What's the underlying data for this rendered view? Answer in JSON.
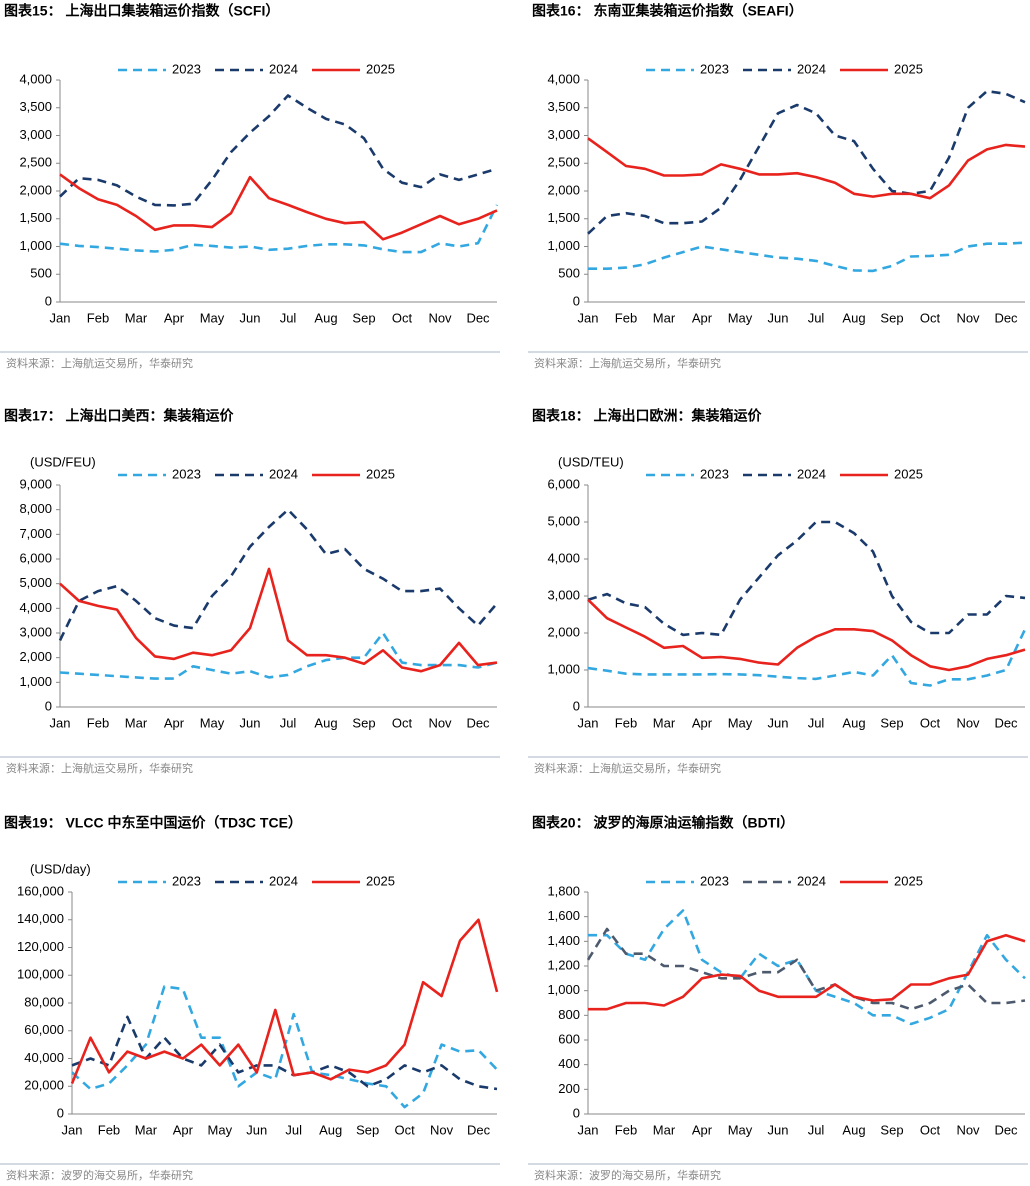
{
  "chart_data": [
    {
      "type": "line",
      "title": "图表15：  上海出口集装箱运价指数（SCFI）",
      "source": "资料来源：上海航运交易所，华泰研究",
      "categories": [
        "Jan",
        null,
        "Feb",
        null,
        "Mar",
        null,
        "Apr",
        null,
        "May",
        null,
        "Jun",
        null,
        "Jul",
        null,
        "Aug",
        null,
        "Sep",
        null,
        "Oct",
        null,
        "Nov",
        null,
        "Dec",
        null
      ],
      "ylim": [
        0,
        4000
      ],
      "yticks": [
        0,
        500,
        {
          "value": 1000,
          "label": "1,000"
        },
        {
          "value": 1500,
          "label": "1,500"
        },
        {
          "value": 2000,
          "label": "2,000"
        },
        {
          "value": 2500,
          "label": "2,500"
        },
        {
          "value": 3000,
          "label": "3,000"
        },
        {
          "value": 3500,
          "label": "3,500"
        },
        {
          "value": 4000,
          "label": "4,000"
        }
      ],
      "series": [
        {
          "name": "2023",
          "color": "#33a8e0",
          "style": "dashed",
          "values": [
            1050,
            1010,
            990,
            960,
            930,
            910,
            940,
            1030,
            1010,
            980,
            1000,
            940,
            960,
            1010,
            1040,
            1040,
            1020,
            950,
            900,
            900,
            1060,
            1000,
            1060,
            1750
          ]
        },
        {
          "name": "2024",
          "color": "#1a3a6b",
          "style": "dashed",
          "values": [
            1900,
            2230,
            2200,
            2100,
            1900,
            1750,
            1740,
            1770,
            2200,
            2700,
            3050,
            3350,
            3720,
            3500,
            3300,
            3200,
            2950,
            2400,
            2150,
            2070,
            2300,
            2200,
            2300,
            2400
          ]
        },
        {
          "name": "2025",
          "color": "#e8221c",
          "style": "solid",
          "values": [
            2300,
            2050,
            1850,
            1750,
            1550,
            1300,
            1380,
            1380,
            1350,
            1600,
            2250,
            1870,
            1750,
            1620,
            1500,
            1420,
            1440,
            1130,
            1250,
            1400,
            1550,
            1400,
            1500,
            1650
          ]
        }
      ]
    },
    {
      "type": "line",
      "title": "图表16：  东南亚集装箱运价指数（SEAFI）",
      "source": "资料来源：上海航运交易所，华泰研究",
      "categories": [
        "Jan",
        null,
        "Feb",
        null,
        "Mar",
        null,
        "Apr",
        null,
        "May",
        null,
        "Jun",
        null,
        "Jul",
        null,
        "Aug",
        null,
        "Sep",
        null,
        "Oct",
        null,
        "Nov",
        null,
        "Dec",
        null
      ],
      "ylim": [
        0,
        4000
      ],
      "yticks": [
        0,
        500,
        {
          "value": 1000,
          "label": "1,000"
        },
        {
          "value": 1500,
          "label": "1,500"
        },
        {
          "value": 2000,
          "label": "2,000"
        },
        {
          "value": 2500,
          "label": "2,500"
        },
        {
          "value": 3000,
          "label": "3,000"
        },
        {
          "value": 3500,
          "label": "3,500"
        },
        {
          "value": 4000,
          "label": "4,000"
        }
      ],
      "series": [
        {
          "name": "2023",
          "color": "#33a8e0",
          "style": "dashed",
          "values": [
            600,
            600,
            620,
            680,
            800,
            900,
            1000,
            950,
            900,
            850,
            800,
            780,
            740,
            650,
            570,
            560,
            650,
            820,
            830,
            850,
            1000,
            1050,
            1050,
            1070
          ]
        },
        {
          "name": "2024",
          "color": "#1a3a6b",
          "style": "dashed",
          "values": [
            1230,
            1550,
            1600,
            1550,
            1420,
            1420,
            1450,
            1700,
            2200,
            2800,
            3400,
            3550,
            3400,
            3000,
            2900,
            2400,
            2000,
            1950,
            2000,
            2600,
            3500,
            3800,
            3750,
            3600
          ]
        },
        {
          "name": "2025",
          "color": "#e8221c",
          "style": "solid",
          "values": [
            2950,
            2700,
            2450,
            2400,
            2280,
            2280,
            2300,
            2480,
            2400,
            2300,
            2300,
            2320,
            2250,
            2150,
            1950,
            1900,
            1950,
            1950,
            1870,
            2100,
            2550,
            2750,
            2830,
            2800
          ]
        }
      ]
    },
    {
      "type": "line",
      "title": "图表17：  上海出口美西：集装箱运价",
      "source": "资料来源：上海航运交易所，华泰研究",
      "ylabel": "(USD/FEU)",
      "categories": [
        "Jan",
        null,
        "Feb",
        null,
        "Mar",
        null,
        "Apr",
        null,
        "May",
        null,
        "Jun",
        null,
        "Jul",
        null,
        "Aug",
        null,
        "Sep",
        null,
        "Oct",
        null,
        "Nov",
        null,
        "Dec",
        null
      ],
      "ylim": [
        0,
        9000
      ],
      "yticks": [
        0,
        {
          "value": 1000,
          "label": "1,000"
        },
        {
          "value": 2000,
          "label": "2,000"
        },
        {
          "value": 3000,
          "label": "3,000"
        },
        {
          "value": 4000,
          "label": "4,000"
        },
        {
          "value": 5000,
          "label": "5,000"
        },
        {
          "value": 6000,
          "label": "6,000"
        },
        {
          "value": 7000,
          "label": "7,000"
        },
        {
          "value": 8000,
          "label": "8,000"
        },
        {
          "value": 9000,
          "label": "9,000"
        }
      ],
      "series": [
        {
          "name": "2023",
          "color": "#33a8e0",
          "style": "dashed",
          "values": [
            1400,
            1350,
            1300,
            1250,
            1200,
            1150,
            1150,
            1650,
            1500,
            1350,
            1450,
            1200,
            1300,
            1650,
            1900,
            2000,
            2000,
            3000,
            1800,
            1700,
            1700,
            1700,
            1600,
            1800
          ]
        },
        {
          "name": "2024",
          "color": "#1a3a6b",
          "style": "dashed",
          "values": [
            2700,
            4300,
            4700,
            4900,
            4300,
            3600,
            3300,
            3200,
            4500,
            5300,
            6500,
            7300,
            8000,
            7200,
            6200,
            6400,
            5600,
            5200,
            4700,
            4700,
            4800,
            4000,
            3300,
            4200
          ]
        },
        {
          "name": "2025",
          "color": "#e8221c",
          "style": "solid",
          "values": [
            5000,
            4300,
            4100,
            3950,
            2800,
            2050,
            1950,
            2200,
            2100,
            2300,
            3200,
            5600,
            2700,
            2100,
            2100,
            2000,
            1750,
            2300,
            1600,
            1450,
            1700,
            2600,
            1700,
            1800
          ]
        }
      ]
    },
    {
      "type": "line",
      "title": "图表18：  上海出口欧洲：集装箱运价",
      "source": "资料来源：上海航运交易所，华泰研究",
      "ylabel": "(USD/TEU)",
      "categories": [
        "Jan",
        null,
        "Feb",
        null,
        "Mar",
        null,
        "Apr",
        null,
        "May",
        null,
        "Jun",
        null,
        "Jul",
        null,
        "Aug",
        null,
        "Sep",
        null,
        "Oct",
        null,
        "Nov",
        null,
        "Dec",
        null
      ],
      "ylim": [
        0,
        6000
      ],
      "yticks": [
        0,
        {
          "value": 1000,
          "label": "1,000"
        },
        {
          "value": 2000,
          "label": "2,000"
        },
        {
          "value": 3000,
          "label": "3,000"
        },
        {
          "value": 4000,
          "label": "4,000"
        },
        {
          "value": 5000,
          "label": "5,000"
        },
        {
          "value": 6000,
          "label": "6,000"
        }
      ],
      "series": [
        {
          "name": "2023",
          "color": "#33a8e0",
          "style": "dashed",
          "values": [
            1050,
            980,
            900,
            880,
            880,
            880,
            880,
            890,
            880,
            860,
            820,
            780,
            760,
            850,
            950,
            850,
            1400,
            650,
            580,
            750,
            750,
            850,
            1000,
            2100
          ]
        },
        {
          "name": "2024",
          "color": "#1a3a6b",
          "style": "dashed",
          "values": [
            2900,
            3050,
            2800,
            2700,
            2250,
            1950,
            2000,
            1950,
            2900,
            3500,
            4100,
            4500,
            5000,
            5000,
            4700,
            4200,
            3000,
            2300,
            2000,
            2000,
            2500,
            2500,
            3000,
            2950
          ]
        },
        {
          "name": "2025",
          "color": "#e8221c",
          "style": "solid",
          "values": [
            2900,
            2400,
            2150,
            1900,
            1600,
            1650,
            1330,
            1350,
            1300,
            1200,
            1150,
            1600,
            1900,
            2100,
            2100,
            2050,
            1800,
            1400,
            1100,
            1000,
            1100,
            1300,
            1400,
            1550
          ]
        }
      ]
    },
    {
      "type": "line",
      "title": "图表19：  VLCC 中东至中国运价（TD3C TCE）",
      "source": "资料来源：波罗的海交易所，华泰研究",
      "ylabel": "(USD/day)",
      "categories": [
        "Jan",
        null,
        "Feb",
        null,
        "Mar",
        null,
        "Apr",
        null,
        "May",
        null,
        "Jun",
        null,
        "Jul",
        null,
        "Aug",
        null,
        "Sep",
        null,
        "Oct",
        null,
        "Nov",
        null,
        "Dec",
        null
      ],
      "ylim": [
        0,
        160000
      ],
      "yticks": [
        0,
        {
          "value": 20000,
          "label": "20,000"
        },
        {
          "value": 40000,
          "label": "40,000"
        },
        {
          "value": 60000,
          "label": "60,000"
        },
        {
          "value": 80000,
          "label": "80,000"
        },
        {
          "value": 100000,
          "label": "100,000"
        },
        {
          "value": 120000,
          "label": "120,000"
        },
        {
          "value": 140000,
          "label": "140,000"
        },
        {
          "value": 160000,
          "label": "160,000"
        }
      ],
      "series": [
        {
          "name": "2023",
          "color": "#33a8e0",
          "style": "dashed",
          "values": [
            30000,
            18000,
            22000,
            35000,
            50000,
            92000,
            90000,
            55000,
            55000,
            20000,
            30000,
            25000,
            72000,
            30000,
            28000,
            25000,
            22000,
            20000,
            5000,
            15000,
            50000,
            45000,
            46000,
            32000
          ]
        },
        {
          "name": "2024",
          "color": "#1a3a6b",
          "style": "dashed",
          "values": [
            35000,
            40000,
            35000,
            70000,
            40000,
            55000,
            40000,
            35000,
            50000,
            30000,
            35000,
            35000,
            28000,
            30000,
            35000,
            30000,
            20000,
            25000,
            35000,
            30000,
            35000,
            25000,
            20000,
            18000
          ]
        },
        {
          "name": "2025",
          "color": "#e8221c",
          "style": "solid",
          "values": [
            22000,
            55000,
            30000,
            45000,
            40000,
            45000,
            40000,
            50000,
            35000,
            50000,
            30000,
            75000,
            28000,
            30000,
            25000,
            32000,
            30000,
            35000,
            50000,
            95000,
            85000,
            125000,
            140000,
            88000
          ]
        }
      ]
    },
    {
      "type": "line",
      "title": "图表20：  波罗的海原油运输指数（BDTI）",
      "source": "资料来源：波罗的海交易所，华泰研究",
      "categories": [
        "Jan",
        null,
        "Feb",
        null,
        "Mar",
        null,
        "Apr",
        null,
        "May",
        null,
        "Jun",
        null,
        "Jul",
        null,
        "Aug",
        null,
        "Sep",
        null,
        "Oct",
        null,
        "Nov",
        null,
        "Dec",
        null
      ],
      "ylim": [
        0,
        1800
      ],
      "yticks": [
        0,
        200,
        400,
        600,
        800,
        {
          "value": 1000,
          "label": "1,000"
        },
        {
          "value": 1200,
          "label": "1,200"
        },
        {
          "value": 1400,
          "label": "1,400"
        },
        {
          "value": 1600,
          "label": "1,600"
        },
        {
          "value": 1800,
          "label": "1,800"
        }
      ],
      "series": [
        {
          "name": "2023",
          "color": "#33a8e0",
          "style": "dashed",
          "values": [
            1450,
            1450,
            1300,
            1250,
            1500,
            1650,
            1250,
            1150,
            1100,
            1300,
            1200,
            1250,
            1000,
            950,
            900,
            800,
            800,
            730,
            780,
            850,
            1150,
            1450,
            1250,
            1100
          ]
        },
        {
          "name": "2024",
          "color": "#4d5a6e",
          "style": "dashed",
          "values": [
            1250,
            1500,
            1300,
            1300,
            1200,
            1200,
            1150,
            1100,
            1100,
            1150,
            1150,
            1250,
            1000,
            1050,
            950,
            900,
            900,
            850,
            900,
            1000,
            1050,
            900,
            900,
            920
          ]
        },
        {
          "name": "2025",
          "color": "#e8221c",
          "style": "solid",
          "values": [
            850,
            850,
            900,
            900,
            880,
            950,
            1100,
            1130,
            1120,
            1000,
            950,
            950,
            950,
            1050,
            950,
            920,
            930,
            1050,
            1050,
            1100,
            1130,
            1400,
            1450,
            1400
          ]
        }
      ]
    }
  ]
}
